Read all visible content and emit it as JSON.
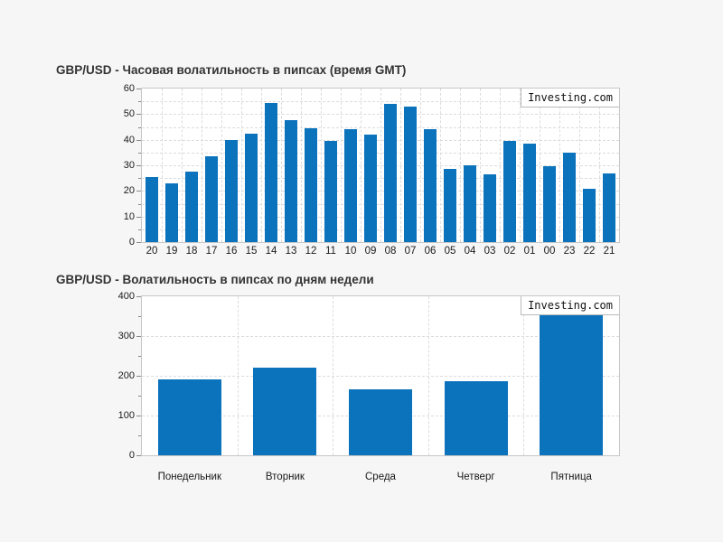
{
  "watermark": "Investing.com",
  "colors": {
    "page_bg": "#f6f6f6",
    "plot_bg": "#ffffff",
    "plot_border": "#c6c6c6",
    "gridline": "#dcdcdc",
    "bar_fill": "#0b72bc",
    "title_text": "#333333",
    "tick_text": "#1a1a1a"
  },
  "chart_data": [
    {
      "type": "bar",
      "title": "GBP/USD - Часовая волатильность в пипсах (время GMT)",
      "watermark": "Investing.com",
      "categories": [
        "20",
        "19",
        "18",
        "17",
        "16",
        "15",
        "14",
        "13",
        "12",
        "11",
        "10",
        "09",
        "08",
        "07",
        "06",
        "05",
        "04",
        "03",
        "02",
        "01",
        "00",
        "23",
        "22",
        "21"
      ],
      "values": [
        25.5,
        23,
        27.5,
        33.5,
        40,
        42.5,
        54.5,
        47.5,
        44.5,
        39.5,
        44,
        42,
        54,
        53,
        44,
        28.5,
        30,
        26.5,
        39.5,
        38.5,
        29.5,
        35,
        21,
        27
      ],
      "xlabel": "",
      "ylabel": "",
      "ylim": [
        0,
        60
      ],
      "ytick_step": 10,
      "yminor_step": 5,
      "grid": true,
      "legend": "none",
      "bar_color": "#0b72bc"
    },
    {
      "type": "bar",
      "title": "GBP/USD - Волатильность в пипсах по дням недели",
      "watermark": "Investing.com",
      "categories": [
        "Понедельник",
        "Вторник",
        "Среда",
        "Четверг",
        "Пятница"
      ],
      "values": [
        190,
        220,
        167,
        186,
        353
      ],
      "xlabel": "",
      "ylabel": "",
      "ylim": [
        0,
        400
      ],
      "ytick_step": 100,
      "yminor_step": 50,
      "gridline_step": 100,
      "grid": true,
      "legend": "none",
      "bar_color": "#0b72bc"
    }
  ]
}
